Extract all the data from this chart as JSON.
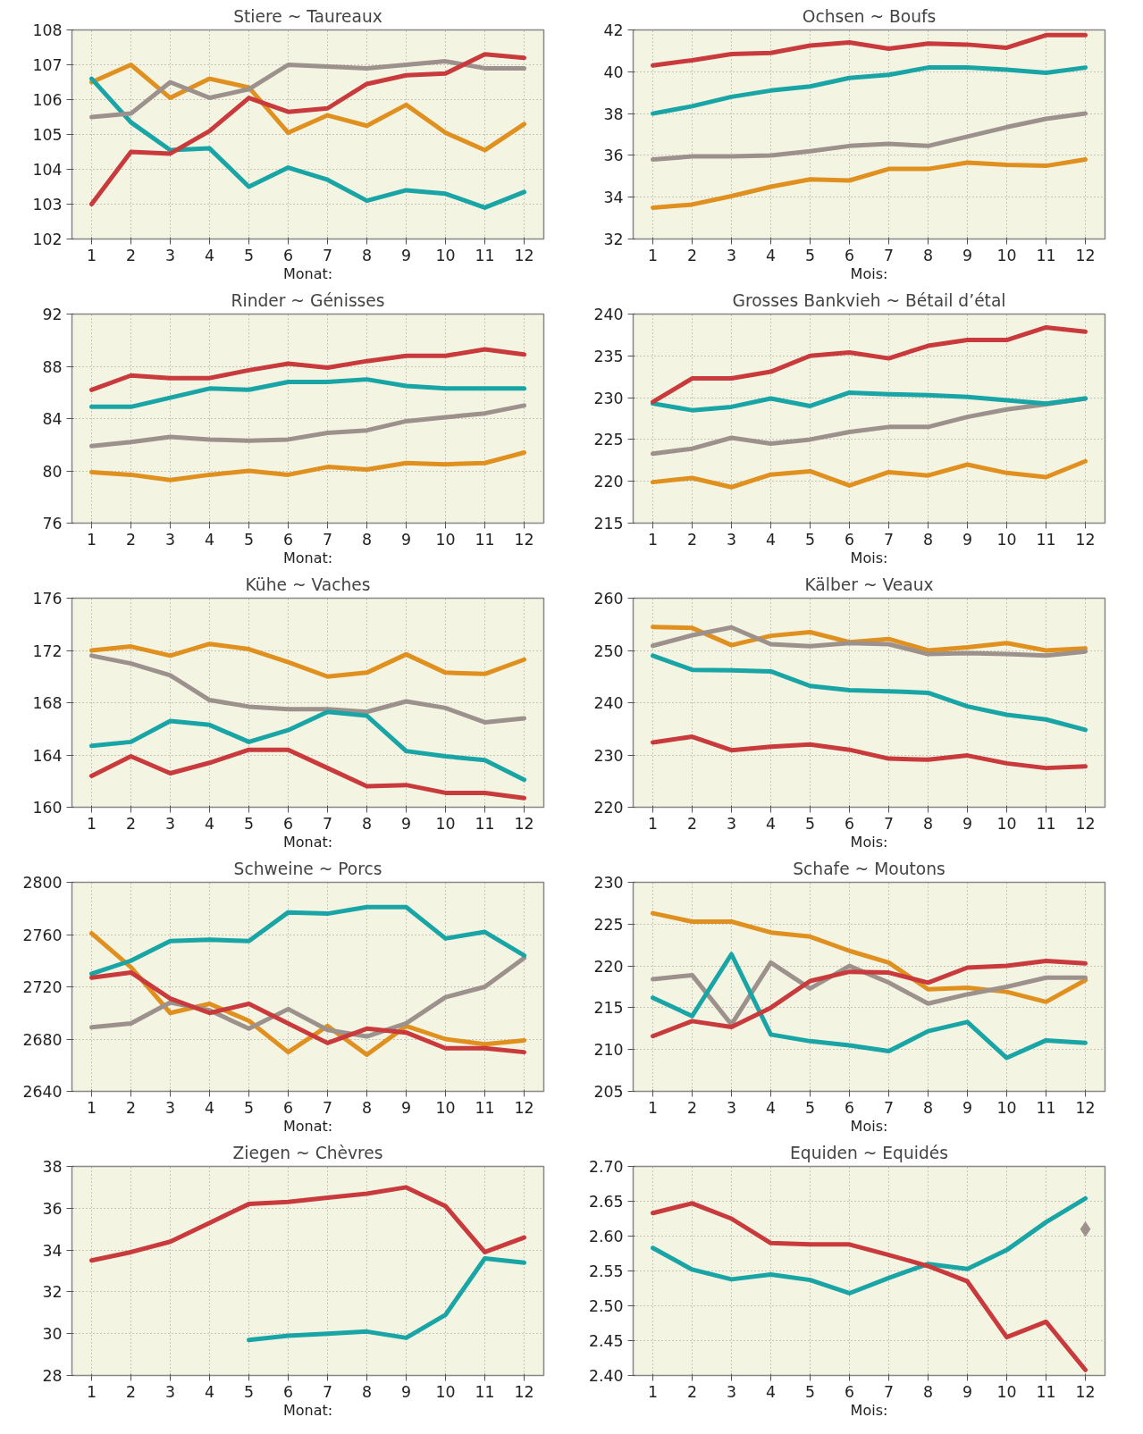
{
  "chart_data": [
    {
      "type": "line",
      "title": "Stiere ~ Taureaux",
      "xlabel": "Monat:",
      "x": [
        1,
        2,
        3,
        4,
        5,
        6,
        7,
        8,
        9,
        10,
        11,
        12
      ],
      "xlim": [
        0.5,
        12.5
      ],
      "xticks": [
        1,
        2,
        3,
        4,
        5,
        6,
        7,
        8,
        9,
        10,
        11,
        12
      ],
      "ylim": [
        102,
        108
      ],
      "yticks": [
        102,
        103,
        104,
        105,
        106,
        107,
        108
      ],
      "grid": true,
      "series": [
        {
          "color": "#e0901e",
          "values": [
            106.5,
            107.0,
            106.05,
            106.6,
            106.35,
            105.05,
            105.55,
            105.25,
            105.85,
            105.05,
            104.55,
            105.3
          ]
        },
        {
          "color": "#19a5a5",
          "values": [
            106.6,
            105.35,
            104.55,
            104.6,
            103.5,
            104.05,
            103.7,
            103.1,
            103.4,
            103.3,
            102.9,
            103.35
          ]
        },
        {
          "color": "#9c918c",
          "values": [
            105.5,
            105.6,
            106.5,
            106.05,
            106.3,
            107.0,
            106.95,
            106.9,
            107.0,
            107.1,
            106.9,
            106.9
          ]
        },
        {
          "color": "#c83a3c",
          "values": [
            103.0,
            104.5,
            104.45,
            105.1,
            106.05,
            105.65,
            105.75,
            106.45,
            106.7,
            106.75,
            107.3,
            107.2
          ]
        }
      ]
    },
    {
      "type": "line",
      "title": "Ochsen ~ Boufs",
      "xlabel": "Mois:",
      "x": [
        1,
        2,
        3,
        4,
        5,
        6,
        7,
        8,
        9,
        10,
        11,
        12
      ],
      "xlim": [
        0.5,
        12.5
      ],
      "xticks": [
        1,
        2,
        3,
        4,
        5,
        6,
        7,
        8,
        9,
        10,
        11,
        12
      ],
      "ylim": [
        32,
        42
      ],
      "yticks": [
        32,
        34,
        36,
        38,
        40,
        42
      ],
      "grid": true,
      "series": [
        {
          "color": "#e0901e",
          "values": [
            33.5,
            33.65,
            34.05,
            34.5,
            34.85,
            34.8,
            35.35,
            35.35,
            35.65,
            35.55,
            35.5,
            35.8
          ]
        },
        {
          "color": "#9c918c",
          "values": [
            35.8,
            35.95,
            35.95,
            36.0,
            36.2,
            36.45,
            36.55,
            36.45,
            36.9,
            37.35,
            37.75,
            38.0
          ]
        },
        {
          "color": "#19a5a5",
          "values": [
            38.0,
            38.35,
            38.8,
            39.1,
            39.3,
            39.7,
            39.85,
            40.2,
            40.2,
            40.1,
            39.95,
            40.2
          ]
        },
        {
          "color": "#c83a3c",
          "values": [
            40.3,
            40.55,
            40.85,
            40.9,
            41.25,
            41.4,
            41.1,
            41.35,
            41.3,
            41.15,
            41.75,
            41.75
          ]
        }
      ]
    },
    {
      "type": "line",
      "title": "Rinder ~ Génisses",
      "xlabel": "Monat:",
      "x": [
        1,
        2,
        3,
        4,
        5,
        6,
        7,
        8,
        9,
        10,
        11,
        12
      ],
      "xlim": [
        0.5,
        12.5
      ],
      "xticks": [
        1,
        2,
        3,
        4,
        5,
        6,
        7,
        8,
        9,
        10,
        11,
        12
      ],
      "ylim": [
        76,
        92
      ],
      "yticks": [
        76,
        80,
        84,
        88,
        92
      ],
      "grid": true,
      "series": [
        {
          "color": "#e0901e",
          "values": [
            79.9,
            79.7,
            79.3,
            79.7,
            80.0,
            79.7,
            80.3,
            80.1,
            80.6,
            80.5,
            80.6,
            81.4
          ]
        },
        {
          "color": "#9c918c",
          "values": [
            81.9,
            82.2,
            82.6,
            82.4,
            82.3,
            82.4,
            82.9,
            83.1,
            83.8,
            84.1,
            84.4,
            85.0
          ]
        },
        {
          "color": "#19a5a5",
          "values": [
            84.9,
            84.9,
            85.6,
            86.3,
            86.2,
            86.8,
            86.8,
            87.0,
            86.5,
            86.3,
            86.3,
            86.3
          ]
        },
        {
          "color": "#c83a3c",
          "values": [
            86.2,
            87.3,
            87.1,
            87.1,
            87.7,
            88.2,
            87.9,
            88.4,
            88.8,
            88.8,
            89.3,
            88.9
          ]
        }
      ]
    },
    {
      "type": "line",
      "title": "Grosses Bankvieh ~ Bétail d’étal",
      "xlabel": "Mois:",
      "x": [
        1,
        2,
        3,
        4,
        5,
        6,
        7,
        8,
        9,
        10,
        11,
        12
      ],
      "xlim": [
        0.5,
        12.5
      ],
      "xticks": [
        1,
        2,
        3,
        4,
        5,
        6,
        7,
        8,
        9,
        10,
        11,
        12
      ],
      "ylim": [
        215,
        240
      ],
      "yticks": [
        215,
        220,
        225,
        230,
        235,
        240
      ],
      "grid": true,
      "series": [
        {
          "color": "#e0901e",
          "values": [
            219.9,
            220.4,
            219.3,
            220.8,
            221.2,
            219.5,
            221.1,
            220.7,
            222.0,
            221.0,
            220.5,
            222.4
          ]
        },
        {
          "color": "#9c918c",
          "values": [
            223.3,
            223.9,
            225.2,
            224.5,
            225.0,
            225.9,
            226.5,
            226.5,
            227.7,
            228.6,
            229.2,
            229.9
          ]
        },
        {
          "color": "#19a5a5",
          "values": [
            229.3,
            228.5,
            228.9,
            229.9,
            229.0,
            230.6,
            230.4,
            230.3,
            230.1,
            229.7,
            229.3,
            229.9
          ]
        },
        {
          "color": "#c83a3c",
          "values": [
            229.5,
            232.3,
            232.3,
            233.1,
            235.0,
            235.4,
            234.7,
            236.2,
            236.9,
            236.9,
            238.4,
            237.9
          ]
        }
      ]
    },
    {
      "type": "line",
      "title": "Kühe ~ Vaches",
      "xlabel": "Monat:",
      "x": [
        1,
        2,
        3,
        4,
        5,
        6,
        7,
        8,
        9,
        10,
        11,
        12
      ],
      "xlim": [
        0.5,
        12.5
      ],
      "xticks": [
        1,
        2,
        3,
        4,
        5,
        6,
        7,
        8,
        9,
        10,
        11,
        12
      ],
      "ylim": [
        160,
        176
      ],
      "yticks": [
        160,
        164,
        168,
        172,
        176
      ],
      "grid": true,
      "series": [
        {
          "color": "#e0901e",
          "values": [
            172.0,
            172.3,
            171.6,
            172.5,
            172.1,
            171.1,
            170.0,
            170.3,
            171.7,
            170.3,
            170.2,
            171.3
          ]
        },
        {
          "color": "#9c918c",
          "values": [
            171.6,
            171.0,
            170.1,
            168.2,
            167.7,
            167.5,
            167.5,
            167.3,
            168.1,
            167.6,
            166.5,
            166.8
          ]
        },
        {
          "color": "#19a5a5",
          "values": [
            164.7,
            165.0,
            166.6,
            166.3,
            165.0,
            165.9,
            167.3,
            167.0,
            164.3,
            163.9,
            163.6,
            162.1
          ]
        },
        {
          "color": "#c83a3c",
          "values": [
            162.4,
            163.9,
            162.6,
            163.4,
            164.4,
            164.4,
            163.0,
            161.6,
            161.7,
            161.1,
            161.1,
            160.7
          ]
        }
      ]
    },
    {
      "type": "line",
      "title": "Kälber ~ Veaux",
      "xlabel": "Mois:",
      "x": [
        1,
        2,
        3,
        4,
        5,
        6,
        7,
        8,
        9,
        10,
        11,
        12
      ],
      "xlim": [
        0.5,
        12.5
      ],
      "xticks": [
        1,
        2,
        3,
        4,
        5,
        6,
        7,
        8,
        9,
        10,
        11,
        12
      ],
      "ylim": [
        220,
        260
      ],
      "yticks": [
        220,
        230,
        240,
        250,
        260
      ],
      "grid": true,
      "series": [
        {
          "color": "#e0901e",
          "values": [
            254.5,
            254.3,
            251.0,
            252.8,
            253.5,
            251.6,
            252.2,
            250.0,
            250.6,
            251.4,
            250.0,
            250.4
          ]
        },
        {
          "color": "#9c918c",
          "values": [
            250.9,
            252.9,
            254.4,
            251.2,
            250.8,
            251.4,
            251.2,
            249.3,
            249.5,
            249.3,
            249.0,
            249.8
          ]
        },
        {
          "color": "#19a5a5",
          "values": [
            249.0,
            246.3,
            246.2,
            246.0,
            243.2,
            242.4,
            242.2,
            241.9,
            239.3,
            237.7,
            236.8,
            234.8
          ]
        },
        {
          "color": "#c83a3c",
          "values": [
            232.4,
            233.5,
            230.9,
            231.6,
            232.0,
            231.0,
            229.3,
            229.1,
            229.9,
            228.4,
            227.5,
            227.8
          ]
        }
      ]
    },
    {
      "type": "line",
      "title": "Schweine ~ Porcs",
      "xlabel": "Monat:",
      "x": [
        1,
        2,
        3,
        4,
        5,
        6,
        7,
        8,
        9,
        10,
        11,
        12
      ],
      "xlim": [
        0.5,
        12.5
      ],
      "xticks": [
        1,
        2,
        3,
        4,
        5,
        6,
        7,
        8,
        9,
        10,
        11,
        12
      ],
      "ylim": [
        2640,
        2800
      ],
      "yticks": [
        2640,
        2680,
        2720,
        2760,
        2800
      ],
      "grid": true,
      "series": [
        {
          "color": "#e0901e",
          "values": [
            2761,
            2735,
            2700,
            2707,
            2694,
            2670,
            2690,
            2668,
            2690,
            2680,
            2676,
            2679
          ]
        },
        {
          "color": "#9c918c",
          "values": [
            2689,
            2692,
            2708,
            2702,
            2688,
            2703,
            2687,
            2682,
            2692,
            2712,
            2720,
            2742
          ]
        },
        {
          "color": "#19a5a5",
          "values": [
            2730,
            2740,
            2755,
            2756,
            2755,
            2777,
            2776,
            2781,
            2781,
            2757,
            2762,
            2744
          ]
        },
        {
          "color": "#c83a3c",
          "values": [
            2727,
            2731,
            2711,
            2700,
            2707,
            2692,
            2677,
            2688,
            2685,
            2673,
            2673,
            2670
          ]
        }
      ]
    },
    {
      "type": "line",
      "title": "Schafe ~ Moutons",
      "xlabel": "Mois:",
      "x": [
        1,
        2,
        3,
        4,
        5,
        6,
        7,
        8,
        9,
        10,
        11,
        12
      ],
      "xlim": [
        0.5,
        12.5
      ],
      "xticks": [
        1,
        2,
        3,
        4,
        5,
        6,
        7,
        8,
        9,
        10,
        11,
        12
      ],
      "ylim": [
        205,
        230
      ],
      "yticks": [
        205,
        210,
        215,
        220,
        225,
        230
      ],
      "grid": true,
      "series": [
        {
          "color": "#e0901e",
          "values": [
            226.3,
            225.3,
            225.3,
            224.0,
            223.5,
            221.8,
            220.4,
            217.2,
            217.4,
            216.9,
            215.7,
            218.3
          ]
        },
        {
          "color": "#9c918c",
          "values": [
            218.4,
            218.9,
            213.0,
            220.4,
            217.3,
            220.0,
            218.0,
            215.5,
            216.6,
            217.5,
            218.6,
            218.6
          ]
        },
        {
          "color": "#19a5a5",
          "values": [
            216.2,
            214.0,
            221.4,
            211.8,
            211.0,
            210.5,
            209.8,
            212.2,
            213.3,
            209.0,
            211.1,
            210.8
          ]
        },
        {
          "color": "#c83a3c",
          "values": [
            211.6,
            213.4,
            212.7,
            215.0,
            218.2,
            219.3,
            219.2,
            218.0,
            219.8,
            220.0,
            220.6,
            220.3
          ]
        }
      ]
    },
    {
      "type": "line",
      "title": "Ziegen ~ Chèvres",
      "xlabel": "Monat:",
      "x": [
        1,
        2,
        3,
        4,
        5,
        6,
        7,
        8,
        9,
        10,
        11,
        12
      ],
      "xlim": [
        0.5,
        12.5
      ],
      "xticks": [
        1,
        2,
        3,
        4,
        5,
        6,
        7,
        8,
        9,
        10,
        11,
        12
      ],
      "ylim": [
        28,
        38
      ],
      "yticks": [
        28,
        30,
        32,
        34,
        36,
        38
      ],
      "grid": true,
      "series": [
        {
          "color": "#19a5a5",
          "values": [
            null,
            null,
            null,
            null,
            29.7,
            29.9,
            30.0,
            30.1,
            29.8,
            30.9,
            33.6,
            33.4
          ]
        },
        {
          "color": "#c83a3c",
          "values": [
            33.5,
            33.9,
            34.4,
            35.3,
            36.2,
            36.3,
            36.5,
            36.7,
            37.0,
            36.1,
            33.9,
            34.6
          ]
        }
      ]
    },
    {
      "type": "line",
      "title": "Equiden ~ Equidés",
      "xlabel": "Mois:",
      "x": [
        1,
        2,
        3,
        4,
        5,
        6,
        7,
        8,
        9,
        10,
        11,
        12
      ],
      "xlim": [
        0.5,
        12.5
      ],
      "xticks": [
        1,
        2,
        3,
        4,
        5,
        6,
        7,
        8,
        9,
        10,
        11,
        12
      ],
      "ylim": [
        2.4,
        2.7
      ],
      "yticks": [
        {
          "value": 2.4,
          "label": "2.40"
        },
        2.45,
        {
          "value": 2.5,
          "label": "2.50"
        },
        2.55,
        {
          "value": 2.6,
          "label": "2.60"
        },
        2.65,
        {
          "value": 2.7,
          "label": "2.70"
        }
      ],
      "grid": true,
      "series": [
        {
          "color": "#19a5a5",
          "values": [
            2.583,
            2.552,
            2.538,
            2.545,
            2.537,
            2.518,
            2.54,
            2.56,
            2.553,
            2.58,
            2.62,
            2.654
          ]
        },
        {
          "color": "#c83a3c",
          "values": [
            2.633,
            2.647,
            2.625,
            2.59,
            2.588,
            2.588,
            2.573,
            2.557,
            2.535,
            2.455,
            2.477,
            2.408
          ]
        },
        {
          "type": "scatter",
          "marker": "diamond",
          "color": "#9c918c",
          "x": [
            12
          ],
          "values": [
            2.61
          ]
        }
      ]
    }
  ]
}
